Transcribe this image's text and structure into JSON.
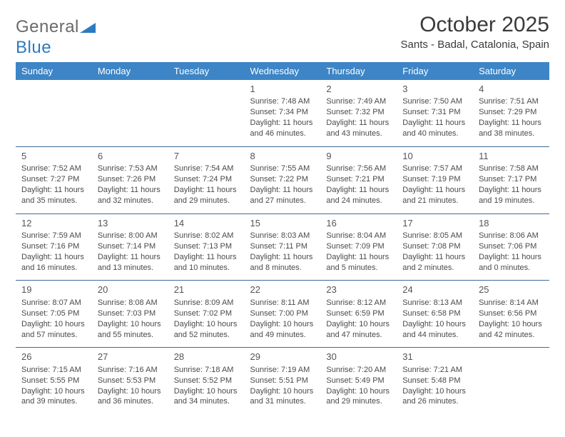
{
  "logo": {
    "part1": "General",
    "part2": "Blue"
  },
  "title": "October 2025",
  "subtitle": "Sants - Badal, Catalonia, Spain",
  "colors": {
    "header_bg": "#3d85c6",
    "header_text": "#ffffff",
    "rule": "#3d6a9a",
    "logo_gray": "#6a6a6a",
    "logo_blue": "#2b7bbf"
  },
  "dayNames": [
    "Sunday",
    "Monday",
    "Tuesday",
    "Wednesday",
    "Thursday",
    "Friday",
    "Saturday"
  ],
  "weeks": [
    [
      null,
      null,
      null,
      {
        "num": "1",
        "sunrise": "Sunrise: 7:48 AM",
        "sunset": "Sunset: 7:34 PM",
        "daylight": "Daylight: 11 hours and 46 minutes."
      },
      {
        "num": "2",
        "sunrise": "Sunrise: 7:49 AM",
        "sunset": "Sunset: 7:32 PM",
        "daylight": "Daylight: 11 hours and 43 minutes."
      },
      {
        "num": "3",
        "sunrise": "Sunrise: 7:50 AM",
        "sunset": "Sunset: 7:31 PM",
        "daylight": "Daylight: 11 hours and 40 minutes."
      },
      {
        "num": "4",
        "sunrise": "Sunrise: 7:51 AM",
        "sunset": "Sunset: 7:29 PM",
        "daylight": "Daylight: 11 hours and 38 minutes."
      }
    ],
    [
      {
        "num": "5",
        "sunrise": "Sunrise: 7:52 AM",
        "sunset": "Sunset: 7:27 PM",
        "daylight": "Daylight: 11 hours and 35 minutes."
      },
      {
        "num": "6",
        "sunrise": "Sunrise: 7:53 AM",
        "sunset": "Sunset: 7:26 PM",
        "daylight": "Daylight: 11 hours and 32 minutes."
      },
      {
        "num": "7",
        "sunrise": "Sunrise: 7:54 AM",
        "sunset": "Sunset: 7:24 PM",
        "daylight": "Daylight: 11 hours and 29 minutes."
      },
      {
        "num": "8",
        "sunrise": "Sunrise: 7:55 AM",
        "sunset": "Sunset: 7:22 PM",
        "daylight": "Daylight: 11 hours and 27 minutes."
      },
      {
        "num": "9",
        "sunrise": "Sunrise: 7:56 AM",
        "sunset": "Sunset: 7:21 PM",
        "daylight": "Daylight: 11 hours and 24 minutes."
      },
      {
        "num": "10",
        "sunrise": "Sunrise: 7:57 AM",
        "sunset": "Sunset: 7:19 PM",
        "daylight": "Daylight: 11 hours and 21 minutes."
      },
      {
        "num": "11",
        "sunrise": "Sunrise: 7:58 AM",
        "sunset": "Sunset: 7:17 PM",
        "daylight": "Daylight: 11 hours and 19 minutes."
      }
    ],
    [
      {
        "num": "12",
        "sunrise": "Sunrise: 7:59 AM",
        "sunset": "Sunset: 7:16 PM",
        "daylight": "Daylight: 11 hours and 16 minutes."
      },
      {
        "num": "13",
        "sunrise": "Sunrise: 8:00 AM",
        "sunset": "Sunset: 7:14 PM",
        "daylight": "Daylight: 11 hours and 13 minutes."
      },
      {
        "num": "14",
        "sunrise": "Sunrise: 8:02 AM",
        "sunset": "Sunset: 7:13 PM",
        "daylight": "Daylight: 11 hours and 10 minutes."
      },
      {
        "num": "15",
        "sunrise": "Sunrise: 8:03 AM",
        "sunset": "Sunset: 7:11 PM",
        "daylight": "Daylight: 11 hours and 8 minutes."
      },
      {
        "num": "16",
        "sunrise": "Sunrise: 8:04 AM",
        "sunset": "Sunset: 7:09 PM",
        "daylight": "Daylight: 11 hours and 5 minutes."
      },
      {
        "num": "17",
        "sunrise": "Sunrise: 8:05 AM",
        "sunset": "Sunset: 7:08 PM",
        "daylight": "Daylight: 11 hours and 2 minutes."
      },
      {
        "num": "18",
        "sunrise": "Sunrise: 8:06 AM",
        "sunset": "Sunset: 7:06 PM",
        "daylight": "Daylight: 11 hours and 0 minutes."
      }
    ],
    [
      {
        "num": "19",
        "sunrise": "Sunrise: 8:07 AM",
        "sunset": "Sunset: 7:05 PM",
        "daylight": "Daylight: 10 hours and 57 minutes."
      },
      {
        "num": "20",
        "sunrise": "Sunrise: 8:08 AM",
        "sunset": "Sunset: 7:03 PM",
        "daylight": "Daylight: 10 hours and 55 minutes."
      },
      {
        "num": "21",
        "sunrise": "Sunrise: 8:09 AM",
        "sunset": "Sunset: 7:02 PM",
        "daylight": "Daylight: 10 hours and 52 minutes."
      },
      {
        "num": "22",
        "sunrise": "Sunrise: 8:11 AM",
        "sunset": "Sunset: 7:00 PM",
        "daylight": "Daylight: 10 hours and 49 minutes."
      },
      {
        "num": "23",
        "sunrise": "Sunrise: 8:12 AM",
        "sunset": "Sunset: 6:59 PM",
        "daylight": "Daylight: 10 hours and 47 minutes."
      },
      {
        "num": "24",
        "sunrise": "Sunrise: 8:13 AM",
        "sunset": "Sunset: 6:58 PM",
        "daylight": "Daylight: 10 hours and 44 minutes."
      },
      {
        "num": "25",
        "sunrise": "Sunrise: 8:14 AM",
        "sunset": "Sunset: 6:56 PM",
        "daylight": "Daylight: 10 hours and 42 minutes."
      }
    ],
    [
      {
        "num": "26",
        "sunrise": "Sunrise: 7:15 AM",
        "sunset": "Sunset: 5:55 PM",
        "daylight": "Daylight: 10 hours and 39 minutes."
      },
      {
        "num": "27",
        "sunrise": "Sunrise: 7:16 AM",
        "sunset": "Sunset: 5:53 PM",
        "daylight": "Daylight: 10 hours and 36 minutes."
      },
      {
        "num": "28",
        "sunrise": "Sunrise: 7:18 AM",
        "sunset": "Sunset: 5:52 PM",
        "daylight": "Daylight: 10 hours and 34 minutes."
      },
      {
        "num": "29",
        "sunrise": "Sunrise: 7:19 AM",
        "sunset": "Sunset: 5:51 PM",
        "daylight": "Daylight: 10 hours and 31 minutes."
      },
      {
        "num": "30",
        "sunrise": "Sunrise: 7:20 AM",
        "sunset": "Sunset: 5:49 PM",
        "daylight": "Daylight: 10 hours and 29 minutes."
      },
      {
        "num": "31",
        "sunrise": "Sunrise: 7:21 AM",
        "sunset": "Sunset: 5:48 PM",
        "daylight": "Daylight: 10 hours and 26 minutes."
      },
      null
    ]
  ]
}
